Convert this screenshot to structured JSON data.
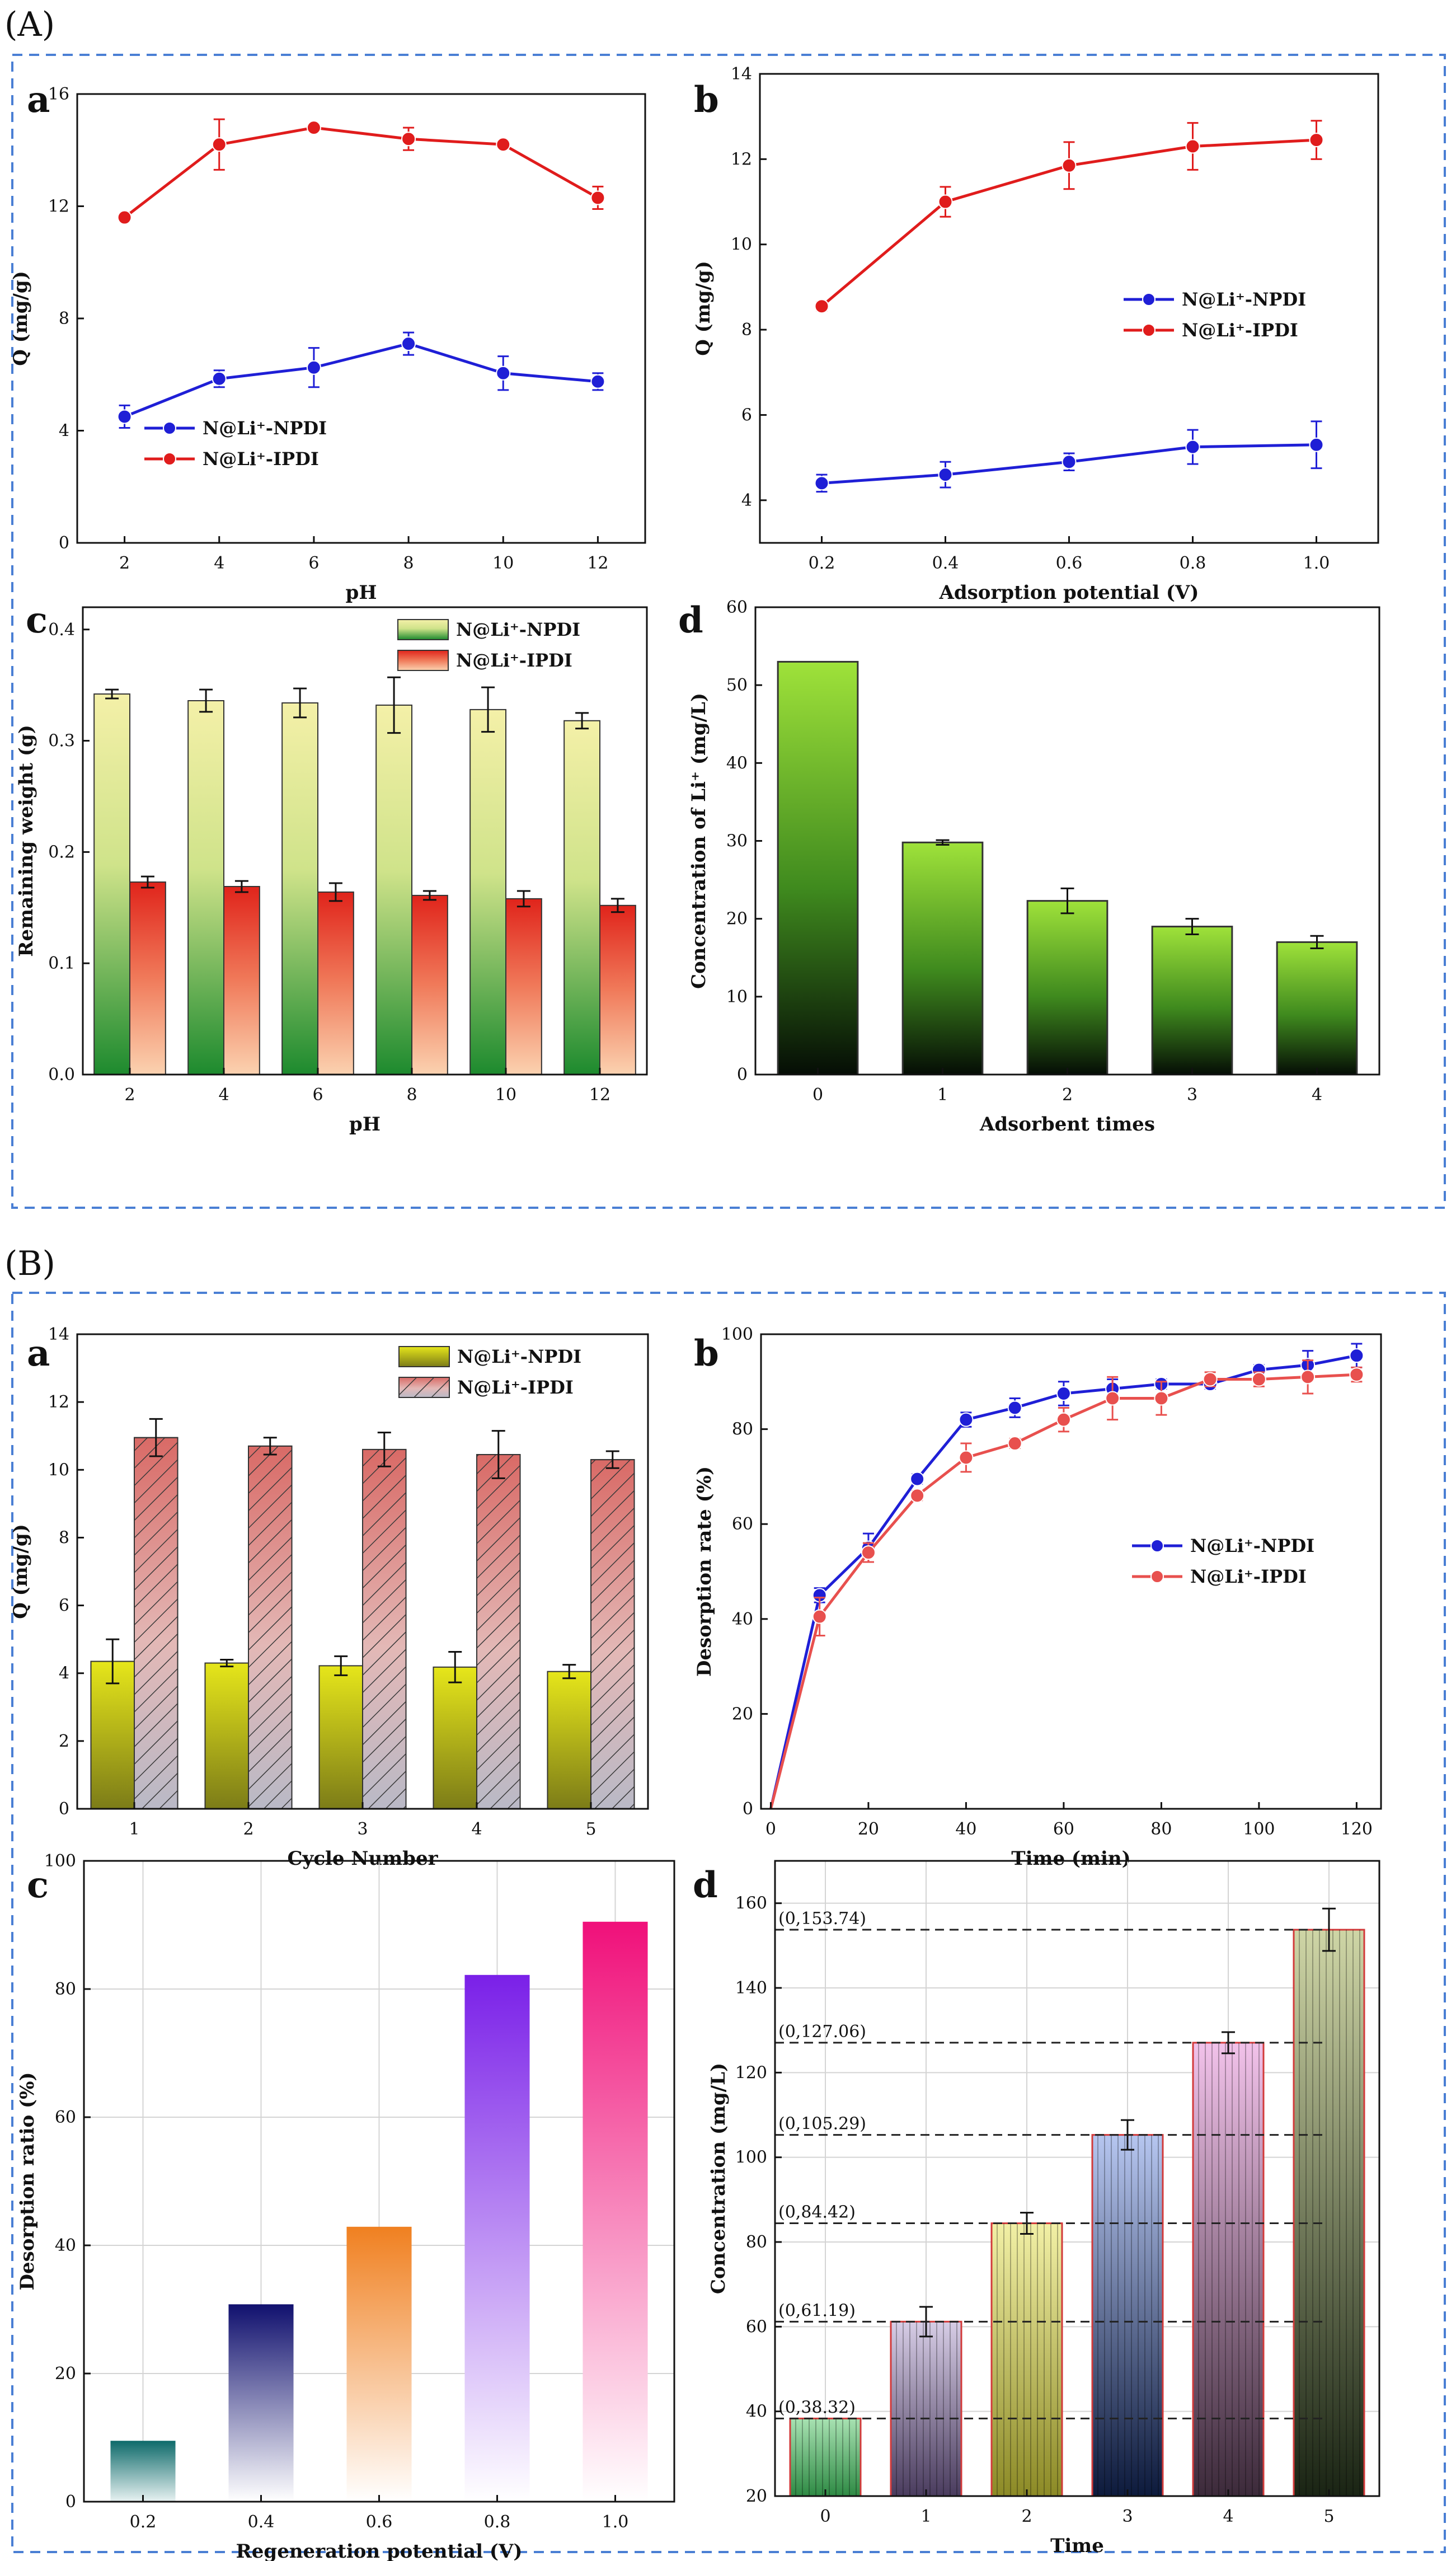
{
  "section_labels": [
    "(A)",
    "(B)"
  ],
  "chart_data": [
    {
      "id": "A_a",
      "panel": "a",
      "type": "line",
      "xlabel": "pH",
      "ylabel": "Q (mg/g)",
      "x": [
        2,
        4,
        6,
        8,
        10,
        12
      ],
      "xlim": [
        1,
        13
      ],
      "xticks": [
        2,
        4,
        6,
        8,
        10,
        12
      ],
      "ylim": [
        0,
        16
      ],
      "yticks": [
        0,
        4,
        8,
        12,
        16
      ],
      "legend_position": "lower-left",
      "series": [
        {
          "name": "N@Li⁺-NPDI",
          "color": "#1f1fd6",
          "values": [
            4.5,
            5.85,
            6.25,
            7.1,
            6.05,
            5.75
          ],
          "err": [
            0.4,
            0.3,
            0.7,
            0.4,
            0.6,
            0.3
          ]
        },
        {
          "name": "N@Li⁺-IPDI",
          "color": "#e01c1c",
          "values": [
            11.6,
            14.2,
            14.8,
            14.4,
            14.2,
            12.3
          ],
          "err": [
            0.1,
            0.9,
            0.1,
            0.4,
            0.1,
            0.4
          ]
        }
      ]
    },
    {
      "id": "A_b",
      "panel": "b",
      "type": "line",
      "xlabel": "Adsorption potential (V)",
      "ylabel": "Q (mg/g)",
      "x": [
        0.2,
        0.4,
        0.6,
        0.8,
        1.0
      ],
      "xlim": [
        0.1,
        1.1
      ],
      "xticks": [
        0.2,
        0.4,
        0.6,
        0.8,
        1.0
      ],
      "xtick_labels": [
        "0.2",
        "0.4",
        "0.6",
        "0.8",
        "1.0"
      ],
      "ylim": [
        3,
        14
      ],
      "yticks": [
        4,
        6,
        8,
        10,
        12,
        14
      ],
      "legend_position": "center-right",
      "series": [
        {
          "name": "N@Li⁺-NPDI",
          "color": "#1f1fd6",
          "values": [
            4.4,
            4.6,
            4.9,
            5.25,
            5.3
          ],
          "err": [
            0.2,
            0.3,
            0.2,
            0.4,
            0.55
          ]
        },
        {
          "name": "N@Li⁺-IPDI",
          "color": "#e01c1c",
          "values": [
            8.55,
            11.0,
            11.85,
            12.3,
            12.45
          ],
          "err": [
            0.1,
            0.35,
            0.55,
            0.55,
            0.45
          ]
        }
      ]
    },
    {
      "id": "A_c",
      "panel": "c",
      "type": "bar",
      "xlabel": "pH",
      "ylabel": "Remaining weight (g)",
      "categories": [
        "2",
        "4",
        "6",
        "8",
        "10",
        "12"
      ],
      "ylim": [
        0,
        0.42
      ],
      "yticks": [
        0.0,
        0.1,
        0.2,
        0.3,
        0.4
      ],
      "ytick_labels": [
        "0.0",
        "0.1",
        "0.2",
        "0.3",
        "0.4"
      ],
      "legend_position": "top-right",
      "series": [
        {
          "name": "N@Li⁺-NPDI",
          "values": [
            0.342,
            0.336,
            0.334,
            0.332,
            0.328,
            0.318
          ],
          "err": [
            0.004,
            0.01,
            0.013,
            0.025,
            0.02,
            0.007
          ]
        },
        {
          "name": "N@Li⁺-IPDI",
          "values": [
            0.173,
            0.169,
            0.164,
            0.161,
            0.158,
            0.152
          ],
          "err": [
            0.005,
            0.005,
            0.008,
            0.004,
            0.007,
            0.006
          ]
        }
      ]
    },
    {
      "id": "A_d",
      "panel": "d",
      "type": "bar",
      "xlabel": "Adsorbent times",
      "ylabel": "Concentration of Li⁺ (mg/L)",
      "categories": [
        "0",
        "1",
        "2",
        "3",
        "4"
      ],
      "ylim": [
        0,
        60
      ],
      "yticks": [
        0,
        10,
        20,
        30,
        40,
        50,
        60
      ],
      "series": [
        {
          "name": "Li⁺",
          "values": [
            53.0,
            29.8,
            22.3,
            19.0,
            17.0
          ],
          "err": [
            0,
            0.3,
            1.6,
            1.0,
            0.8
          ]
        }
      ]
    },
    {
      "id": "B_a",
      "panel": "a",
      "type": "bar",
      "xlabel": "Cycle Number",
      "ylabel": "Q (mg/g)",
      "categories": [
        "1",
        "2",
        "3",
        "4",
        "5"
      ],
      "ylim": [
        0,
        14
      ],
      "yticks": [
        0,
        2,
        4,
        6,
        8,
        10,
        12,
        14
      ],
      "legend_position": "top-right",
      "series": [
        {
          "name": "N@Li⁺-NPDI",
          "values": [
            4.35,
            4.3,
            4.22,
            4.18,
            4.05
          ],
          "err": [
            0.65,
            0.1,
            0.28,
            0.45,
            0.2
          ]
        },
        {
          "name": "N@Li⁺-IPDI",
          "values": [
            10.95,
            10.7,
            10.6,
            10.45,
            10.3
          ],
          "err": [
            0.55,
            0.25,
            0.5,
            0.7,
            0.25
          ]
        }
      ]
    },
    {
      "id": "B_b",
      "panel": "b",
      "type": "line",
      "xlabel": "Time (min)",
      "ylabel": "Desorption rate (%)",
      "x": [
        0,
        10,
        20,
        30,
        40,
        50,
        60,
        70,
        80,
        90,
        100,
        110,
        120
      ],
      "xlim": [
        -2,
        125
      ],
      "xticks": [
        0,
        20,
        40,
        60,
        80,
        100,
        120
      ],
      "ylim": [
        0,
        100
      ],
      "yticks": [
        0,
        20,
        40,
        60,
        80,
        100
      ],
      "legend_position": "center-right",
      "series": [
        {
          "name": "N@Li⁺-NPDI",
          "color": "#1f1fd6",
          "values": [
            0,
            45,
            55,
            69.5,
            82,
            84.5,
            87.5,
            88.5,
            89.5,
            89.5,
            92.5,
            93.5,
            95.5
          ],
          "err": [
            0,
            1.5,
            3,
            1,
            1.5,
            2,
            2.5,
            2,
            1,
            1,
            1,
            3,
            2.5
          ]
        },
        {
          "name": "N@Li⁺-IPDI",
          "color": "#e8504e",
          "values": [
            0,
            40.5,
            54,
            66,
            74,
            77,
            82,
            86.5,
            86.5,
            90.5,
            90.5,
            91,
            91.5
          ],
          "err": [
            0,
            4,
            2,
            1,
            3,
            1,
            2.5,
            4.5,
            3.5,
            1.5,
            1.5,
            3.5,
            1.5
          ]
        }
      ]
    },
    {
      "id": "B_c",
      "panel": "c",
      "type": "bar",
      "xlabel": "Regeneration potential (V)",
      "ylabel": "Desorption ratio (%)",
      "categories": [
        "0.2",
        "0.4",
        "0.6",
        "0.8",
        "1.0"
      ],
      "ylim": [
        0,
        100
      ],
      "yticks": [
        0,
        20,
        40,
        60,
        80,
        100
      ],
      "series": [
        {
          "name": "Desorption ratio",
          "values": [
            9.5,
            30.8,
            42.9,
            82.2,
            90.5
          ]
        }
      ]
    },
    {
      "id": "B_d",
      "panel": "d",
      "type": "bar",
      "xlabel": "Time",
      "ylabel": "Concentration (mg/L)",
      "categories": [
        "0",
        "1",
        "2",
        "3",
        "4",
        "5"
      ],
      "ylim": [
        20,
        170
      ],
      "yticks": [
        20,
        40,
        60,
        80,
        100,
        120,
        140,
        160
      ],
      "series": [
        {
          "name": "Concentration",
          "values": [
            38.32,
            61.19,
            84.42,
            105.29,
            127.06,
            153.74
          ],
          "err": [
            0,
            3.5,
            2.5,
            3.5,
            2.5,
            5
          ]
        }
      ],
      "annotations": [
        "(0,38.32)",
        "(0,61.19)",
        "(0,84.42)",
        "(0,105.29)",
        "(0,127.06)",
        "(0,153.74)"
      ]
    }
  ]
}
